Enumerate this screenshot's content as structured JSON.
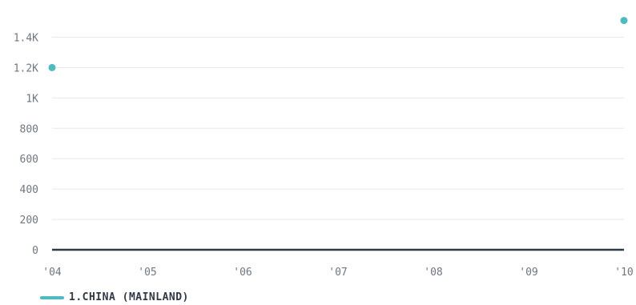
{
  "chart_data": {
    "type": "scatter",
    "x_categories": [
      "'04",
      "'05",
      "'06",
      "'07",
      "'08",
      "'09",
      "'10"
    ],
    "y_ticks": [
      {
        "value": 0,
        "label": "0"
      },
      {
        "value": 200,
        "label": "200"
      },
      {
        "value": 400,
        "label": "400"
      },
      {
        "value": 600,
        "label": "600"
      },
      {
        "value": 800,
        "label": "800"
      },
      {
        "value": 1000,
        "label": "1K"
      },
      {
        "value": 1200,
        "label": "1.2K"
      },
      {
        "value": 1400,
        "label": "1.4K"
      }
    ],
    "ylim": [
      0,
      1550
    ],
    "grid": true,
    "legend_position": "bottom-left",
    "series": [
      {
        "name": "1.CHINA (MAINLAND)",
        "color": "#4dbcc0",
        "points": [
          {
            "x": "'04",
            "y": 1200
          },
          {
            "x": "'10",
            "y": 1510
          }
        ]
      }
    ]
  }
}
